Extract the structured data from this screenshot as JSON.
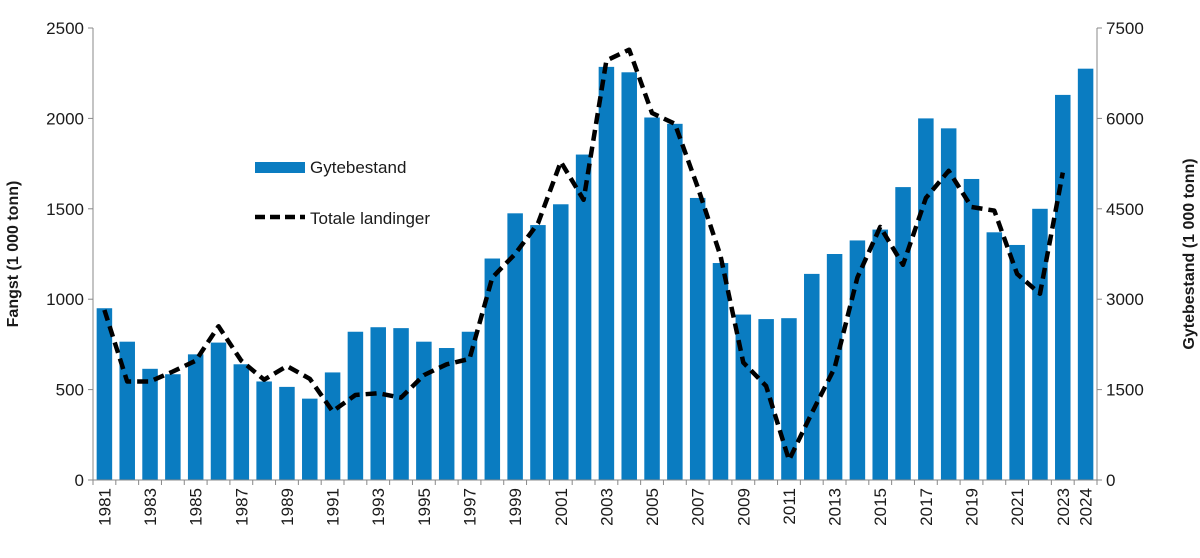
{
  "chart_data": {
    "type": "bar+line",
    "title": "",
    "ylabel_left": "Fangst (1 000 tonn)",
    "ylabel_right": "Gytebestand (1 000 tonn)",
    "ylim_left": [
      0,
      2500
    ],
    "ylim_right": [
      0,
      7500
    ],
    "yticks_left": [
      "0",
      "500",
      "1000",
      "1500",
      "2000",
      "2500"
    ],
    "yticks_right": [
      "0",
      "1500",
      "3000",
      "4500",
      "6000",
      "7500"
    ],
    "xtick_labels": [
      "1981",
      "1983",
      "1985",
      "1987",
      "1989",
      "1991",
      "1993",
      "1995",
      "1997",
      "1999",
      "2001",
      "2003",
      "2005",
      "2007",
      "2009",
      "2011",
      "2013",
      "2015",
      "2017",
      "2019",
      "2021",
      "2023",
      "2024"
    ],
    "grid": false,
    "legend_placement": "upper-left",
    "colors": {
      "bars": "#0a7cc1",
      "line": "#000000"
    },
    "categories": [
      1981,
      1982,
      1983,
      1984,
      1985,
      1986,
      1987,
      1988,
      1989,
      1990,
      1991,
      1992,
      1993,
      1994,
      1995,
      1996,
      1997,
      1998,
      1999,
      2000,
      2001,
      2002,
      2003,
      2004,
      2005,
      2006,
      2007,
      2008,
      2009,
      2010,
      2011,
      2012,
      2013,
      2014,
      2015,
      2016,
      2017,
      2018,
      2019,
      2020,
      2021,
      2022,
      2023,
      2024
    ],
    "series": [
      {
        "name": "Gytebestand",
        "type": "bar",
        "axis": "right",
        "values": [
          2850,
          2295,
          1845,
          1755,
          2085,
          2280,
          1920,
          1635,
          1545,
          1350,
          1785,
          2460,
          2535,
          2520,
          2295,
          2190,
          2460,
          3675,
          4425,
          4230,
          4575,
          5400,
          6855,
          6765,
          6015,
          5910,
          4680,
          3600,
          2745,
          2670,
          2685,
          3420,
          3750,
          3975,
          4155,
          4860,
          6000,
          5835,
          4995,
          4110,
          3900,
          4500,
          6390,
          6825
        ]
      },
      {
        "name": "Totale landinger",
        "type": "line",
        "axis": "left",
        "style": "dashed",
        "values": [
          940,
          545,
          545,
          600,
          660,
          850,
          660,
          555,
          630,
          560,
          380,
          470,
          480,
          455,
          580,
          640,
          670,
          1120,
          1250,
          1420,
          1760,
          1550,
          2320,
          2380,
          2030,
          1970,
          1620,
          1240,
          650,
          520,
          110,
          370,
          620,
          1120,
          1400,
          1190,
          1560,
          1710,
          1510,
          1490,
          1140,
          1030,
          1700,
          null
        ]
      }
    ]
  }
}
